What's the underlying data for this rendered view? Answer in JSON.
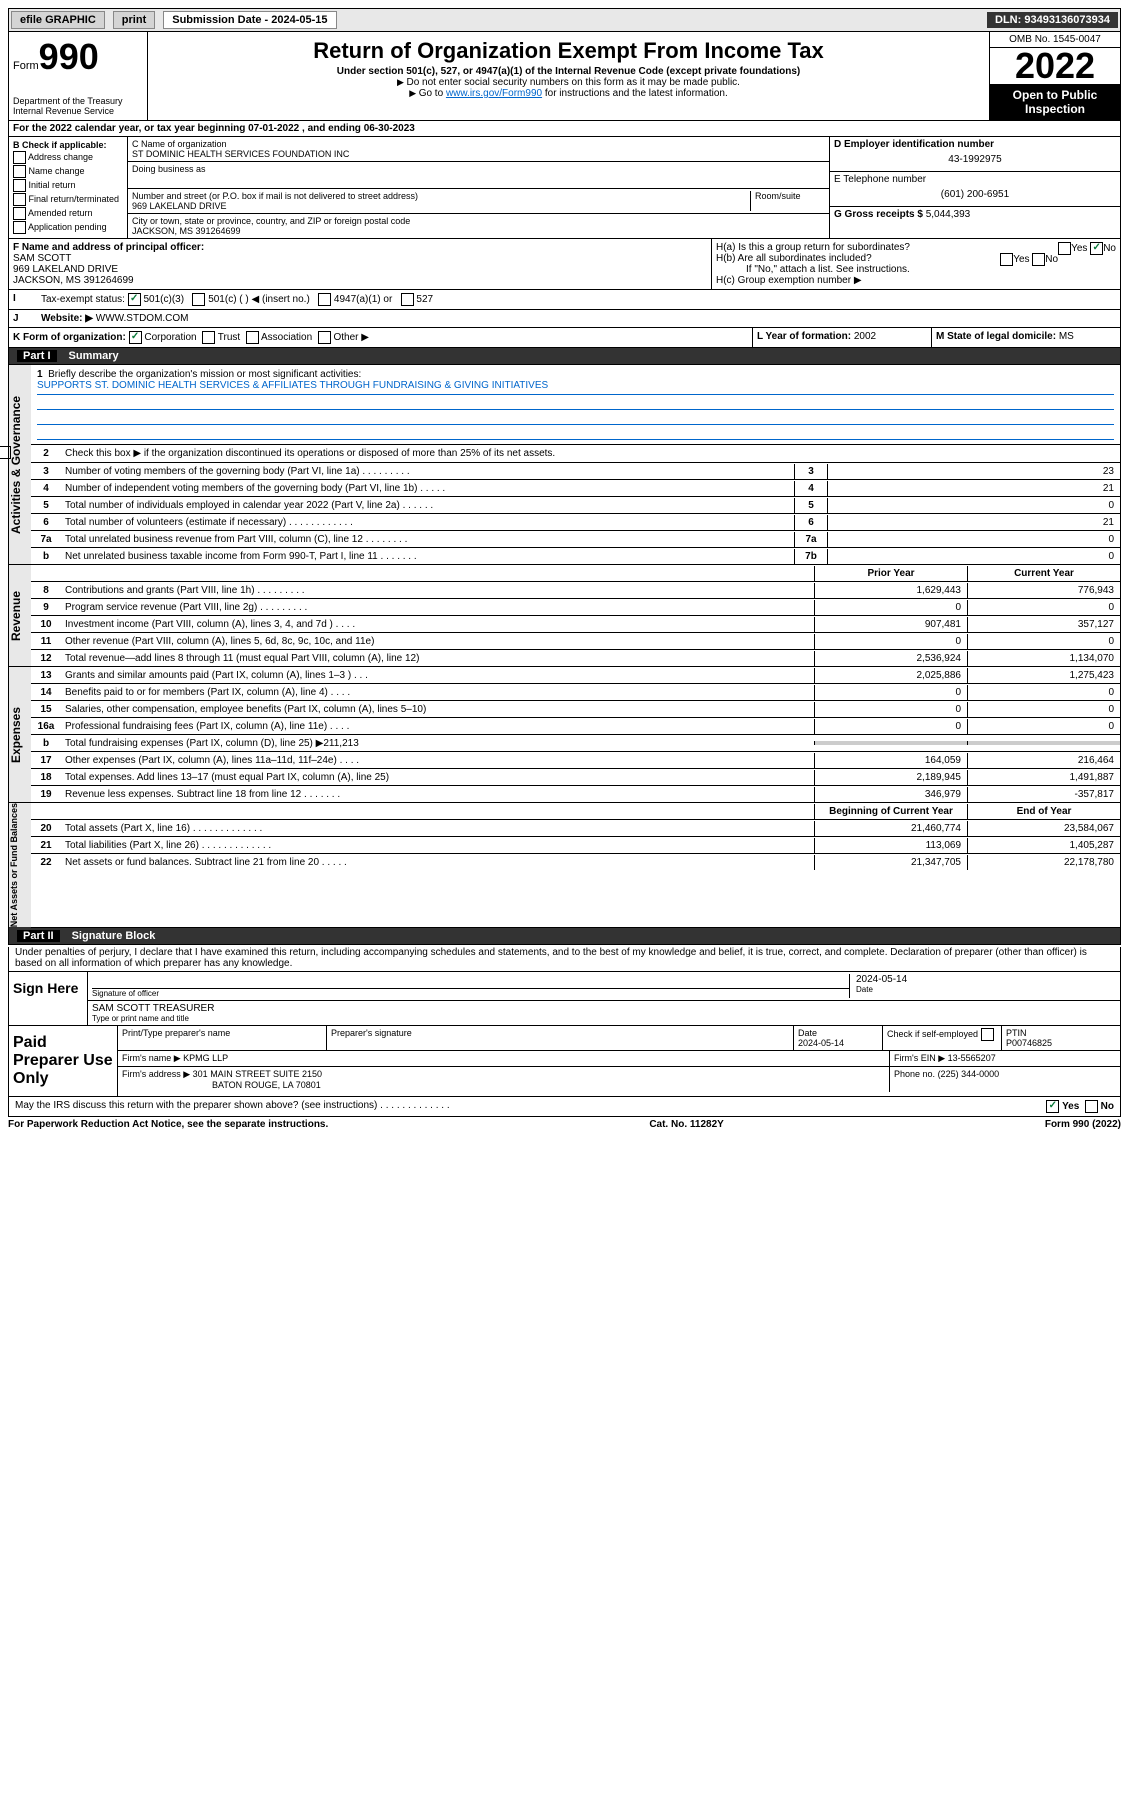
{
  "topbar": {
    "efile": "efile GRAPHIC",
    "print": "print",
    "sub_label": "Submission Date - 2024-05-15",
    "dln": "DLN: 93493136073934"
  },
  "header": {
    "form_label": "Form",
    "form_number": "990",
    "dept": "Department of the Treasury",
    "irs": "Internal Revenue Service",
    "title": "Return of Organization Exempt From Income Tax",
    "subtitle": "Under section 501(c), 527, or 4947(a)(1) of the Internal Revenue Code (except private foundations)",
    "note1": "Do not enter social security numbers on this form as it may be made public.",
    "note2_pre": "Go to ",
    "note2_link": "www.irs.gov/Form990",
    "note2_post": " for instructions and the latest information.",
    "omb": "OMB No. 1545-0047",
    "year": "2022",
    "open": "Open to Public Inspection"
  },
  "period": {
    "text": "For the 2022 calendar year, or tax year beginning 07-01-2022   , and ending 06-30-2023"
  },
  "block_b": {
    "label": "B Check if applicable:",
    "opts": [
      "Address change",
      "Name change",
      "Initial return",
      "Final return/terminated",
      "Amended return",
      "Application pending"
    ]
  },
  "block_c": {
    "name_label": "C Name of organization",
    "name": "ST DOMINIC HEALTH SERVICES FOUNDATION INC",
    "dba_label": "Doing business as",
    "addr_label": "Number and street (or P.O. box if mail is not delivered to street address)",
    "room_label": "Room/suite",
    "addr": "969 LAKELAND DRIVE",
    "city_label": "City or town, state or province, country, and ZIP or foreign postal code",
    "city": "JACKSON, MS  391264699"
  },
  "block_d": {
    "label": "D Employer identification number",
    "value": "43-1992975",
    "e_label": "E Telephone number",
    "e_value": "(601) 200-6951",
    "g_label": "G Gross receipts $",
    "g_value": "5,044,393"
  },
  "block_f": {
    "label": "F Name and address of principal officer:",
    "name": "SAM SCOTT",
    "addr1": "969 LAKELAND DRIVE",
    "addr2": "JACKSON, MS  391264699"
  },
  "block_h": {
    "ha": "H(a)  Is this a group return for subordinates?",
    "hb": "H(b)  Are all subordinates included?",
    "hb_note": "If \"No,\" attach a list. See instructions.",
    "hc": "H(c)  Group exemption number ▶",
    "yes": "Yes",
    "no": "No"
  },
  "row_i": {
    "label": "Tax-exempt status:",
    "opt1": "501(c)(3)",
    "opt2": "501(c) (    ) ◀ (insert no.)",
    "opt3": "4947(a)(1) or",
    "opt4": "527"
  },
  "row_j": {
    "label": "Website: ▶",
    "value": "WWW.STDOM.COM"
  },
  "row_k": {
    "label": "K Form of organization:",
    "opts": [
      "Corporation",
      "Trust",
      "Association",
      "Other ▶"
    ]
  },
  "row_l": {
    "label": "L Year of formation:",
    "value": "2002"
  },
  "row_m": {
    "label": "M State of legal domicile:",
    "value": "MS"
  },
  "part1": {
    "title": "Part I",
    "name": "Summary",
    "q1a": "Briefly describe the organization's mission or most significant activities:",
    "q1b": "SUPPORTS ST. DOMINIC HEALTH SERVICES & AFFILIATES THROUGH FUNDRAISING & GIVING INITIATIVES",
    "q2": "Check this box ▶        if the organization discontinued its operations or disposed of more than 25% of its net assets.",
    "rows_gov": [
      {
        "n": "3",
        "t": "Number of voting members of the governing body (Part VI, line 1a)  .    .    .    .    .    .    .    .    .",
        "bx": "3",
        "v": "23"
      },
      {
        "n": "4",
        "t": "Number of independent voting members of the governing body (Part VI, line 1b)  .    .    .    .    .",
        "bx": "4",
        "v": "21"
      },
      {
        "n": "5",
        "t": "Total number of individuals employed in calendar year 2022 (Part V, line 2a)  .    .    .    .    .    .",
        "bx": "5",
        "v": "0"
      },
      {
        "n": "6",
        "t": "Total number of volunteers (estimate if necessary)  .    .    .    .    .    .    .    .    .    .    .    .",
        "bx": "6",
        "v": "21"
      },
      {
        "n": "7a",
        "t": "Total unrelated business revenue from Part VIII, column (C), line 12  .    .    .    .    .    .    .    .",
        "bx": "7a",
        "v": "0"
      },
      {
        "n": "b",
        "t": "Net unrelated business taxable income from Form 990-T, Part I, line 11  .    .    .    .    .    .    .",
        "bx": "7b",
        "v": "0"
      }
    ],
    "hdr_prior": "Prior Year",
    "hdr_curr": "Current Year",
    "rows_rev": [
      {
        "n": "8",
        "t": "Contributions and grants (Part VIII, line 1h)  .    .    .    .    .    .    .    .    .",
        "p": "1,629,443",
        "c": "776,943"
      },
      {
        "n": "9",
        "t": "Program service revenue (Part VIII, line 2g)  .    .    .    .    .    .    .    .    .",
        "p": "0",
        "c": "0"
      },
      {
        "n": "10",
        "t": "Investment income (Part VIII, column (A), lines 3, 4, and 7d )  .    .    .    .",
        "p": "907,481",
        "c": "357,127"
      },
      {
        "n": "11",
        "t": "Other revenue (Part VIII, column (A), lines 5, 6d, 8c, 9c, 10c, and 11e)",
        "p": "0",
        "c": "0"
      },
      {
        "n": "12",
        "t": "Total revenue—add lines 8 through 11 (must equal Part VIII, column (A), line 12)",
        "p": "2,536,924",
        "c": "1,134,070"
      }
    ],
    "rows_exp": [
      {
        "n": "13",
        "t": "Grants and similar amounts paid (Part IX, column (A), lines 1–3 )  .    .    .",
        "p": "2,025,886",
        "c": "1,275,423"
      },
      {
        "n": "14",
        "t": "Benefits paid to or for members (Part IX, column (A), line 4)  .    .    .    .",
        "p": "0",
        "c": "0"
      },
      {
        "n": "15",
        "t": "Salaries, other compensation, employee benefits (Part IX, column (A), lines 5–10)",
        "p": "0",
        "c": "0"
      },
      {
        "n": "16a",
        "t": "Professional fundraising fees (Part IX, column (A), line 11e)  .    .    .    .",
        "p": "0",
        "c": "0"
      },
      {
        "n": "b",
        "t": "Total fundraising expenses (Part IX, column (D), line 25) ▶211,213",
        "p": "",
        "c": "",
        "shade": true
      },
      {
        "n": "17",
        "t": "Other expenses (Part IX, column (A), lines 11a–11d, 11f–24e)  .    .    .    .",
        "p": "164,059",
        "c": "216,464"
      },
      {
        "n": "18",
        "t": "Total expenses. Add lines 13–17 (must equal Part IX, column (A), line 25)",
        "p": "2,189,945",
        "c": "1,491,887"
      },
      {
        "n": "19",
        "t": "Revenue less expenses. Subtract line 18 from line 12  .    .    .    .    .    .    .",
        "p": "346,979",
        "c": "-357,817"
      }
    ],
    "hdr_beg": "Beginning of Current Year",
    "hdr_end": "End of Year",
    "rows_na": [
      {
        "n": "20",
        "t": "Total assets (Part X, line 16)  .    .    .    .    .    .    .    .    .    .    .    .    .",
        "p": "21,460,774",
        "c": "23,584,067"
      },
      {
        "n": "21",
        "t": "Total liabilities (Part X, line 26)  .    .    .    .    .    .    .    .    .    .    .    .    .",
        "p": "113,069",
        "c": "1,405,287"
      },
      {
        "n": "22",
        "t": "Net assets or fund balances. Subtract line 21 from line 20  .    .    .    .    .",
        "p": "21,347,705",
        "c": "22,178,780"
      }
    ],
    "tabs": {
      "gov": "Activities & Governance",
      "rev": "Revenue",
      "exp": "Expenses",
      "na": "Net Assets or Fund Balances"
    }
  },
  "part2": {
    "title": "Part II",
    "name": "Signature Block",
    "decl": "Under penalties of perjury, I declare that I have examined this return, including accompanying schedules and statements, and to the best of my knowledge and belief, it is true, correct, and complete. Declaration of preparer (other than officer) is based on all information of which preparer has any knowledge.",
    "sign_here": "Sign Here",
    "sig_officer": "Signature of officer",
    "sig_date": "2024-05-14",
    "date_label": "Date",
    "officer_name": "SAM SCOTT  TREASURER",
    "officer_sub": "Type or print name and title",
    "paid": "Paid Preparer Use Only",
    "p_name_label": "Print/Type preparer's name",
    "p_sig_label": "Preparer's signature",
    "p_date_label": "Date",
    "p_date": "2024-05-14",
    "p_check": "Check        if self-employed",
    "ptin_label": "PTIN",
    "ptin": "P00746825",
    "firm_name_label": "Firm's name    ▶",
    "firm_name": "KPMG LLP",
    "firm_ein_label": "Firm's EIN ▶",
    "firm_ein": "13-5565207",
    "firm_addr_label": "Firm's address ▶",
    "firm_addr1": "301 MAIN STREET SUITE 2150",
    "firm_addr2": "BATON ROUGE, LA  70801",
    "phone_label": "Phone no.",
    "phone": "(225) 344-0000",
    "discuss": "May the IRS discuss this return with the preparer shown above? (see instructions)  .    .    .    .    .    .    .    .    .    .    .    .    ."
  },
  "footer": {
    "left": "For Paperwork Reduction Act Notice, see the separate instructions.",
    "mid": "Cat. No. 11282Y",
    "right": "Form 990 (2022)"
  }
}
